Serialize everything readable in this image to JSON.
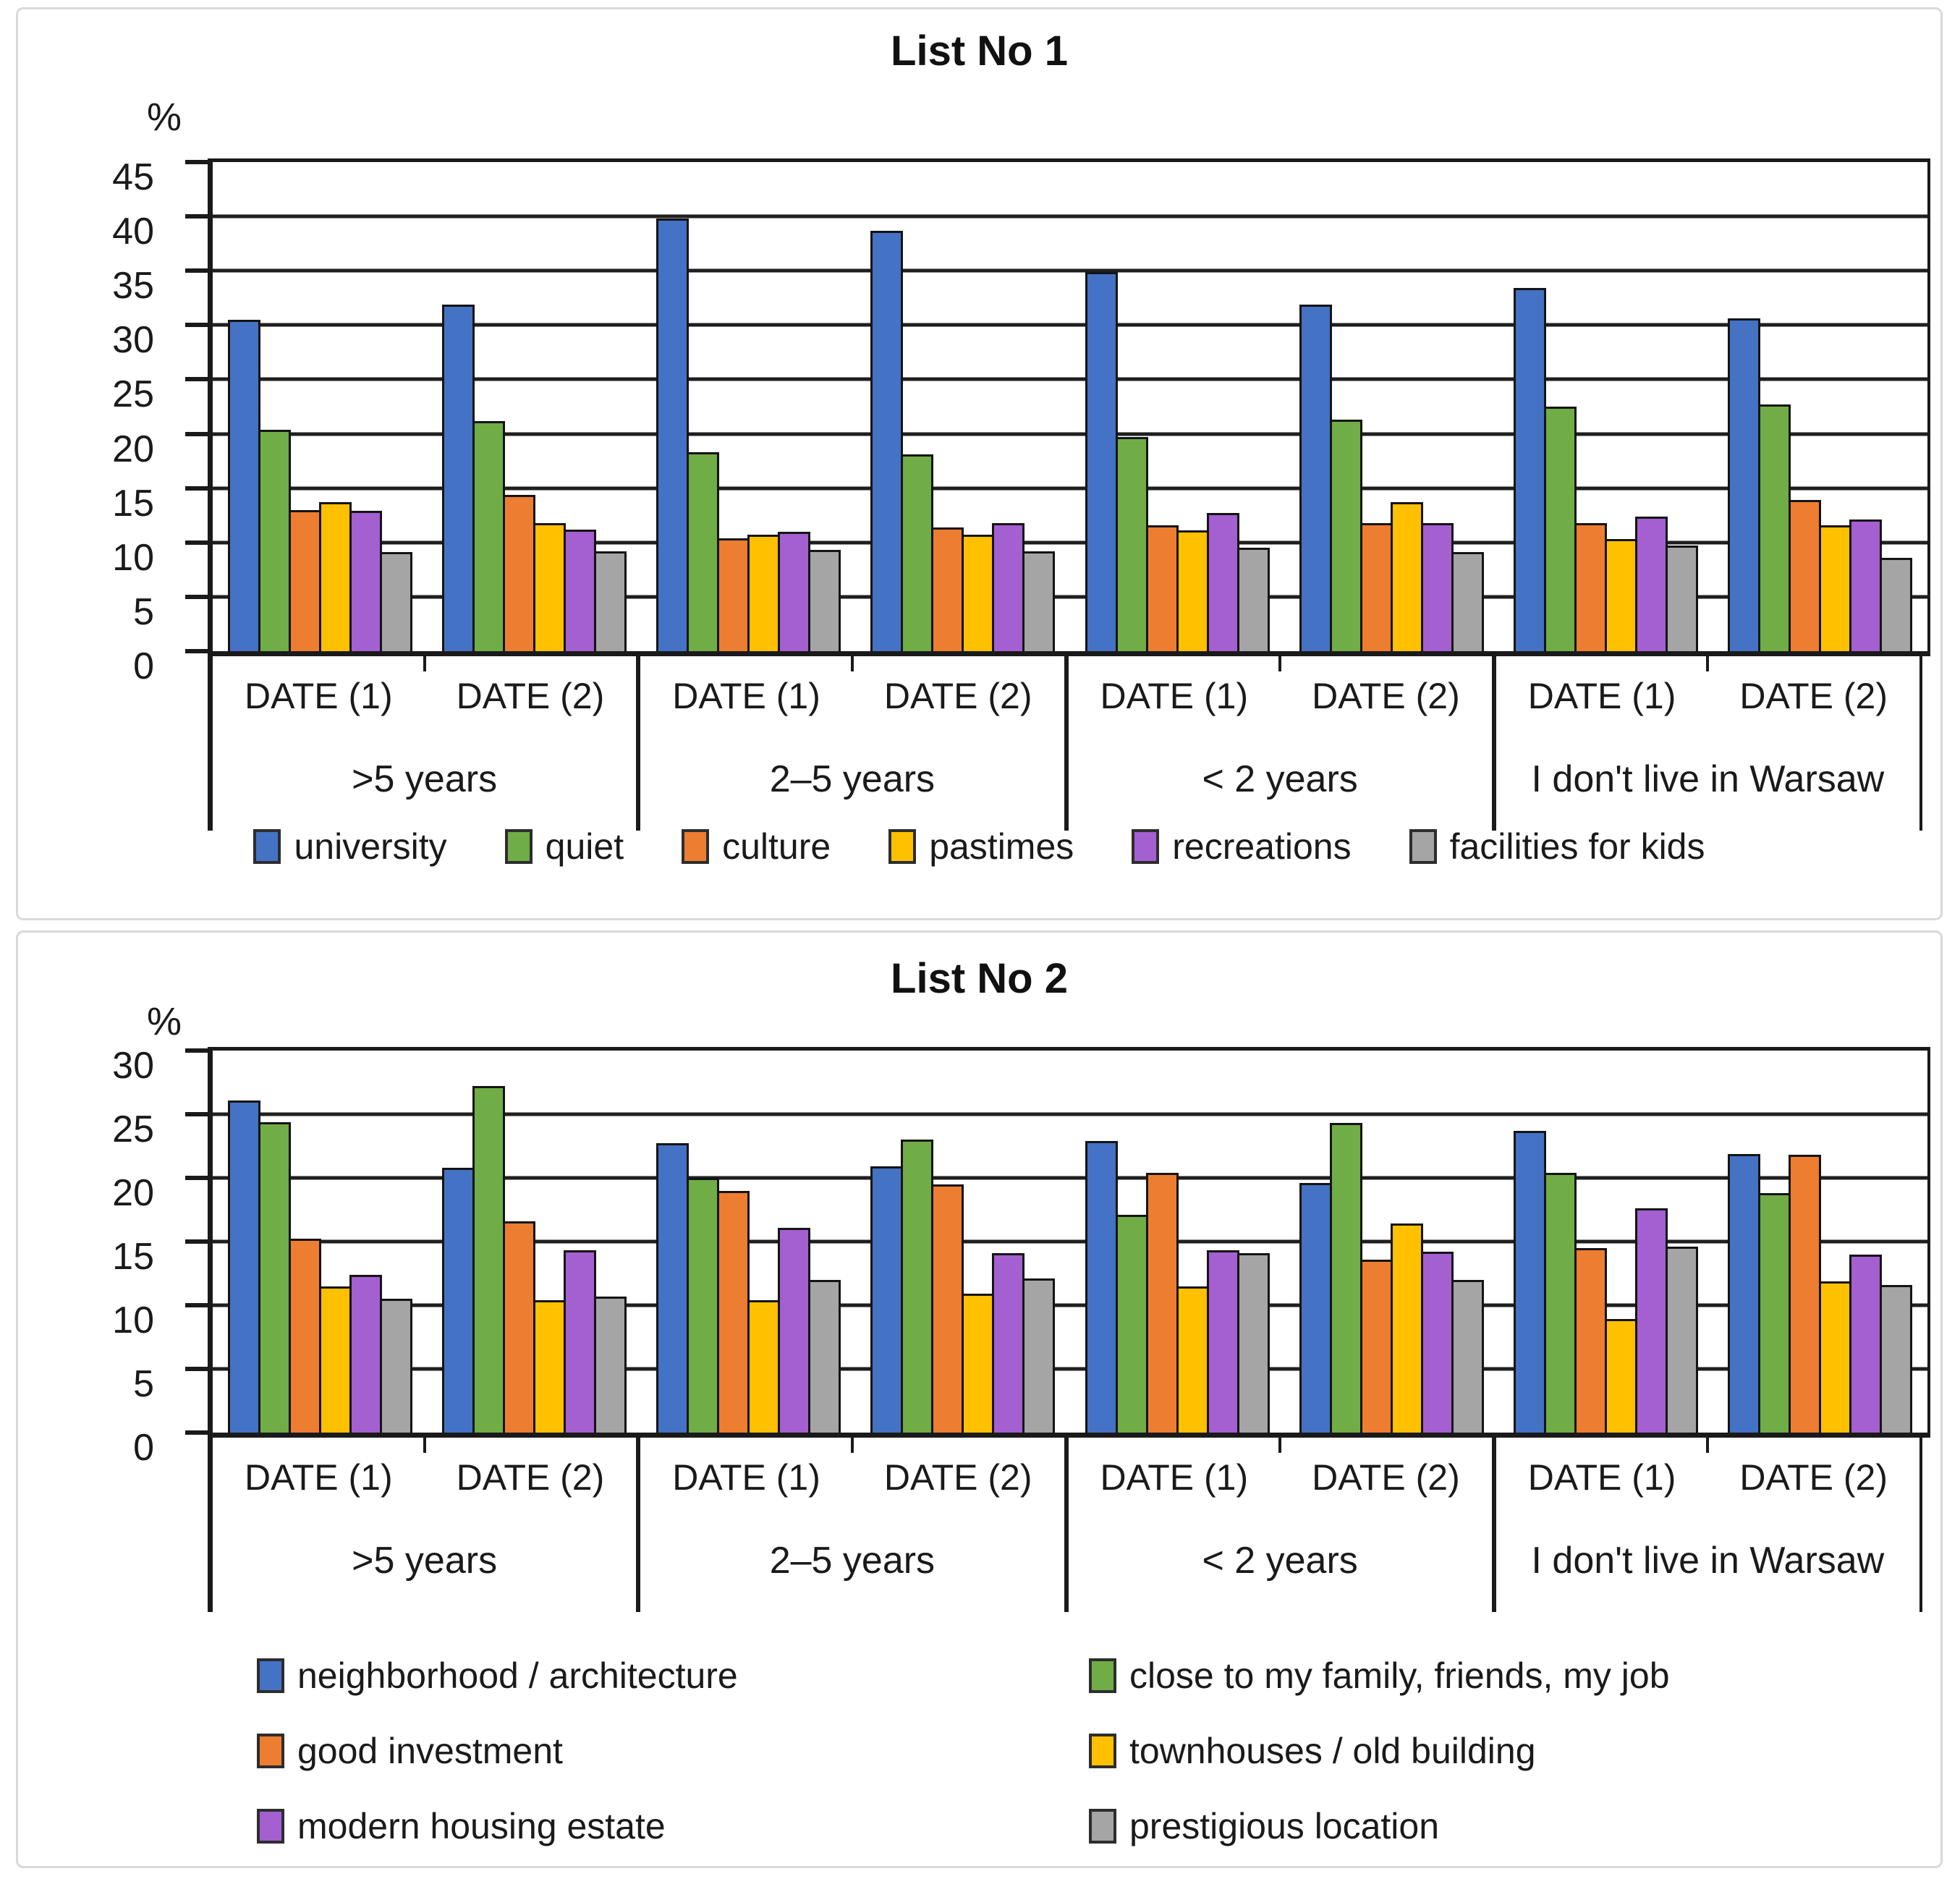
{
  "page": {
    "background": "#ffffff",
    "panel_border_color": "#d9d9d9"
  },
  "chart_data": [
    {
      "type": "bar",
      "title": "List No 1",
      "ylabel": "%",
      "ylim": [
        0,
        45
      ],
      "ytick_step": 5,
      "grid": true,
      "legend_position": "bottom",
      "legend_layout": "row",
      "group_categories": [
        ">5 years",
        "2–5 years",
        "< 2 years",
        "I don't live in Warsaw"
      ],
      "date_categories": [
        "DATE (1)",
        "DATE (2)"
      ],
      "value_columns": [
        ">5 years DATE (1)",
        ">5 years DATE (2)",
        "2–5 years DATE (1)",
        "2–5 years DATE (2)",
        "< 2 years DATE (1)",
        "< 2 years DATE (2)",
        "I don't live in Warsaw DATE (1)",
        "I don't live in Warsaw DATE (2)"
      ],
      "series": [
        {
          "name": "university",
          "color": "#4472C4",
          "values": [
            30.5,
            31.9,
            39.8,
            38.7,
            34.9,
            31.9,
            33.4,
            30.6
          ]
        },
        {
          "name": "quiet",
          "color": "#70AD47",
          "values": [
            20.4,
            21.2,
            18.3,
            18.1,
            19.7,
            21.3,
            22.5,
            22.7
          ]
        },
        {
          "name": "culture",
          "color": "#ED7D31",
          "values": [
            13.0,
            14.4,
            10.4,
            11.4,
            11.6,
            11.8,
            11.8,
            13.9
          ]
        },
        {
          "name": "pastimes",
          "color": "#FFC000",
          "values": [
            13.7,
            11.8,
            10.7,
            10.7,
            11.1,
            13.7,
            10.3,
            11.6
          ]
        },
        {
          "name": "recreations",
          "color": "#A45FD1",
          "values": [
            12.9,
            11.2,
            11.0,
            11.8,
            12.7,
            11.8,
            12.4,
            12.1
          ]
        },
        {
          "name": "facilities for kids",
          "color": "#A5A5A5",
          "values": [
            9.1,
            9.2,
            9.3,
            9.2,
            9.5,
            9.1,
            9.7,
            8.6
          ]
        }
      ]
    },
    {
      "type": "bar",
      "title": "List No 2",
      "ylabel": "%",
      "ylim": [
        0,
        30
      ],
      "ytick_step": 5,
      "grid": true,
      "legend_position": "bottom",
      "legend_layout": "two-column",
      "group_categories": [
        ">5 years",
        "2–5 years",
        "< 2 years",
        "I don't live in Warsaw"
      ],
      "date_categories": [
        "DATE (1)",
        "DATE (2)"
      ],
      "value_columns": [
        ">5 years DATE (1)",
        ">5 years DATE (2)",
        "2–5 years DATE (1)",
        "2–5 years DATE (2)",
        "< 2 years DATE (1)",
        "< 2 years DATE (2)",
        "I don't live in Warsaw DATE (1)",
        "I don't live in Warsaw DATE (2)"
      ],
      "series": [
        {
          "name": "neighborhood / architecture",
          "color": "#4472C4",
          "values": [
            26.1,
            20.8,
            22.7,
            20.9,
            22.9,
            19.6,
            23.7,
            21.9
          ]
        },
        {
          "name": "close to my family, friends, my job",
          "color": "#70AD47",
          "values": [
            24.4,
            27.2,
            20.0,
            23.0,
            17.1,
            24.3,
            20.4,
            18.8
          ]
        },
        {
          "name": "good investment",
          "color": "#ED7D31",
          "values": [
            15.2,
            16.6,
            19.0,
            19.5,
            20.4,
            13.6,
            14.5,
            21.8
          ]
        },
        {
          "name": "townhouses / old building",
          "color": "#FFC000",
          "values": [
            11.5,
            10.4,
            10.4,
            10.9,
            11.5,
            16.4,
            8.9,
            11.9
          ]
        },
        {
          "name": "modern housing estate",
          "color": "#A45FD1",
          "values": [
            12.4,
            14.3,
            16.1,
            14.1,
            14.3,
            14.2,
            17.6,
            14.0
          ]
        },
        {
          "name": "prestigious location",
          "color": "#A5A5A5",
          "values": [
            10.5,
            10.7,
            12.0,
            12.1,
            14.1,
            12.0,
            14.6,
            11.6
          ]
        }
      ]
    }
  ]
}
